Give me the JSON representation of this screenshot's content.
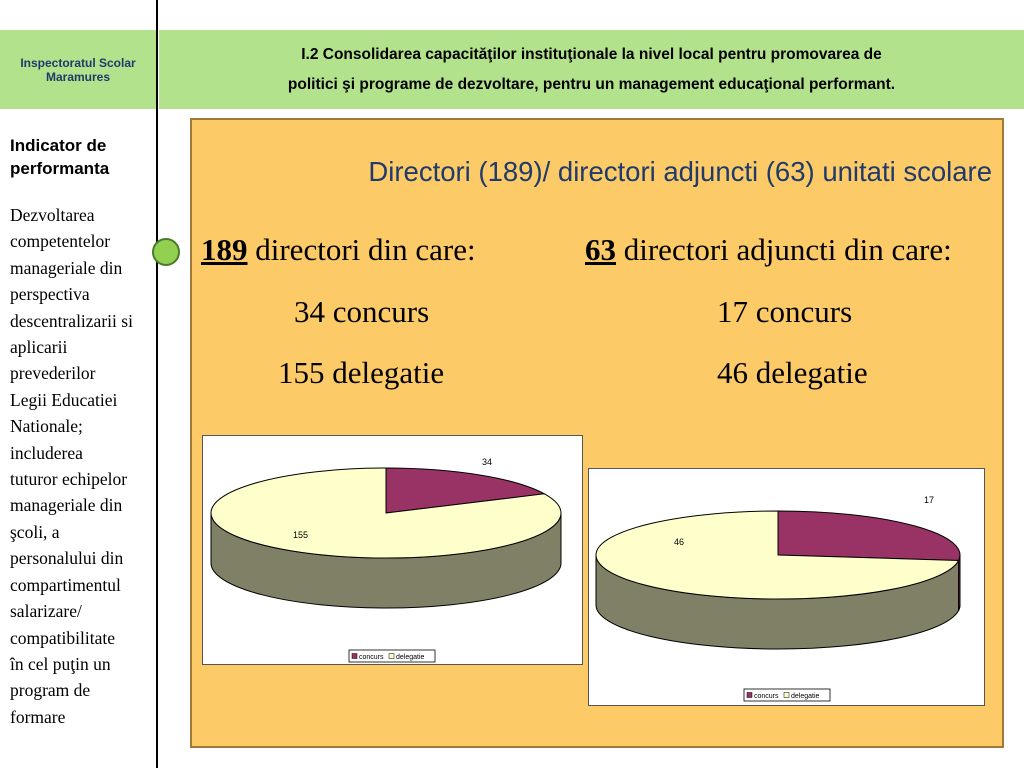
{
  "header": {
    "left_lines": [
      "Inspectoratul Scolar",
      "Maramures"
    ],
    "right_lines": [
      "I.2 Consolidarea capacităţilor instituţionale la nivel local pentru  promovarea de",
      "politici şi programe de dezvoltare, pentru un management educaţional  performant."
    ]
  },
  "indicator": {
    "title_lines": [
      "Indicator de",
      "performanta"
    ],
    "desc_lines": [
      "Dezvoltarea",
      "competentelor",
      "manageriale din",
      "perspectiva",
      "descentralizarii si",
      "aplicarii",
      "prevederilor",
      "Legii Educatiei",
      "Nationale;",
      "includerea",
      "tuturor echipelor",
      "manageriale din",
      "şcoli, a",
      "personalului din",
      "compartimentul",
      "salarizare/",
      "compatibilitate",
      "în cel puţin un",
      "program de",
      "formare"
    ]
  },
  "panel": {
    "title": "Directori (189)/ directori adjuncti (63) unitati scolare",
    "left": {
      "count": "189",
      "text": " directori din care:",
      "line1": "34 concurs",
      "line2": "155 delegatie"
    },
    "right": {
      "count": "63",
      "text": " directori adjuncti din care:",
      "line1": "17 concurs",
      "line2": "46 delegatie"
    }
  },
  "colors": {
    "concurs": "#993366",
    "delegatie": "#ffffcc",
    "side": "#808066",
    "panel": "#fcca66",
    "header": "#b3e28c"
  },
  "chart_data": [
    {
      "type": "pie",
      "categories": [
        "concurs",
        "delegatie"
      ],
      "values": [
        34,
        155
      ],
      "data_labels": [
        "34",
        "155"
      ],
      "legend": [
        "concurs",
        "delegatie"
      ],
      "legend_position": "bottom"
    },
    {
      "type": "pie",
      "categories": [
        "concurs",
        "delegatie"
      ],
      "values": [
        17,
        46
      ],
      "data_labels": [
        "17",
        "46"
      ],
      "legend": [
        "concurs",
        "delegatie"
      ],
      "legend_position": "bottom"
    }
  ]
}
